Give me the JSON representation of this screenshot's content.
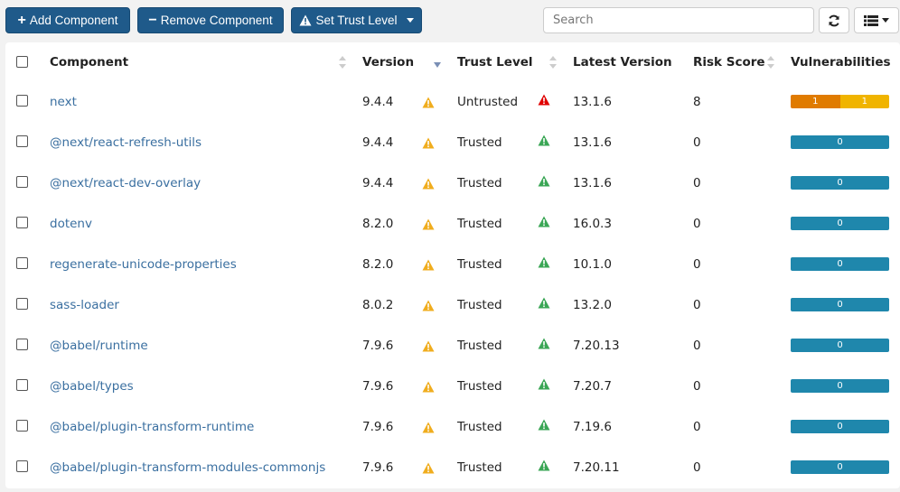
{
  "toolbar": {
    "add_label": "Add Component",
    "remove_label": "Remove Component",
    "trust_label": "Set Trust Level",
    "search_placeholder": "Search"
  },
  "table": {
    "columns": {
      "component": "Component",
      "version": "Version",
      "trust_level": "Trust Level",
      "latest_version": "Latest Version",
      "risk_score": "Risk Score",
      "vulnerabilities": "Vulnerabilities"
    },
    "rows": [
      {
        "component": "next",
        "version": "9.4.4",
        "trust": "Untrusted",
        "latest": "13.1.6",
        "risk": "8",
        "vulns": [
          "1",
          "1"
        ]
      },
      {
        "component": "@next/react-refresh-utils",
        "version": "9.4.4",
        "trust": "Trusted",
        "latest": "13.1.6",
        "risk": "0",
        "vulns": [
          "0"
        ]
      },
      {
        "component": "@next/react-dev-overlay",
        "version": "9.4.4",
        "trust": "Trusted",
        "latest": "13.1.6",
        "risk": "0",
        "vulns": [
          "0"
        ]
      },
      {
        "component": "dotenv",
        "version": "8.2.0",
        "trust": "Trusted",
        "latest": "16.0.3",
        "risk": "0",
        "vulns": [
          "0"
        ]
      },
      {
        "component": "regenerate-unicode-properties",
        "version": "8.2.0",
        "trust": "Trusted",
        "latest": "10.1.0",
        "risk": "0",
        "vulns": [
          "0"
        ]
      },
      {
        "component": "sass-loader",
        "version": "8.0.2",
        "trust": "Trusted",
        "latest": "13.2.0",
        "risk": "0",
        "vulns": [
          "0"
        ]
      },
      {
        "component": "@babel/runtime",
        "version": "7.9.6",
        "trust": "Trusted",
        "latest": "7.20.13",
        "risk": "0",
        "vulns": [
          "0"
        ]
      },
      {
        "component": "@babel/types",
        "version": "7.9.6",
        "trust": "Trusted",
        "latest": "7.20.7",
        "risk": "0",
        "vulns": [
          "0"
        ]
      },
      {
        "component": "@babel/plugin-transform-runtime",
        "version": "7.9.6",
        "trust": "Trusted",
        "latest": "7.19.6",
        "risk": "0",
        "vulns": [
          "0"
        ]
      },
      {
        "component": "@babel/plugin-transform-modules-commonjs",
        "version": "7.9.6",
        "trust": "Trusted",
        "latest": "7.20.11",
        "risk": "0",
        "vulns": [
          "0"
        ]
      }
    ]
  },
  "colors": {
    "primary": "#1f5a8a",
    "link": "#3a6fa0",
    "warning": "#f0ad1e",
    "danger": "#e00000",
    "success": "#3aa655",
    "vuln_high": "#e07b00",
    "vuln_medium": "#f0b400",
    "vuln_none": "#1f87ac"
  },
  "icons": {
    "add": "plus-icon",
    "remove": "minus-icon",
    "trust": "warning-icon",
    "refresh": "refresh-icon",
    "columns": "list-icon",
    "outdated": "warning-triangle-icon",
    "untrusted": "danger-triangle-icon",
    "trusted": "success-triangle-icon"
  }
}
